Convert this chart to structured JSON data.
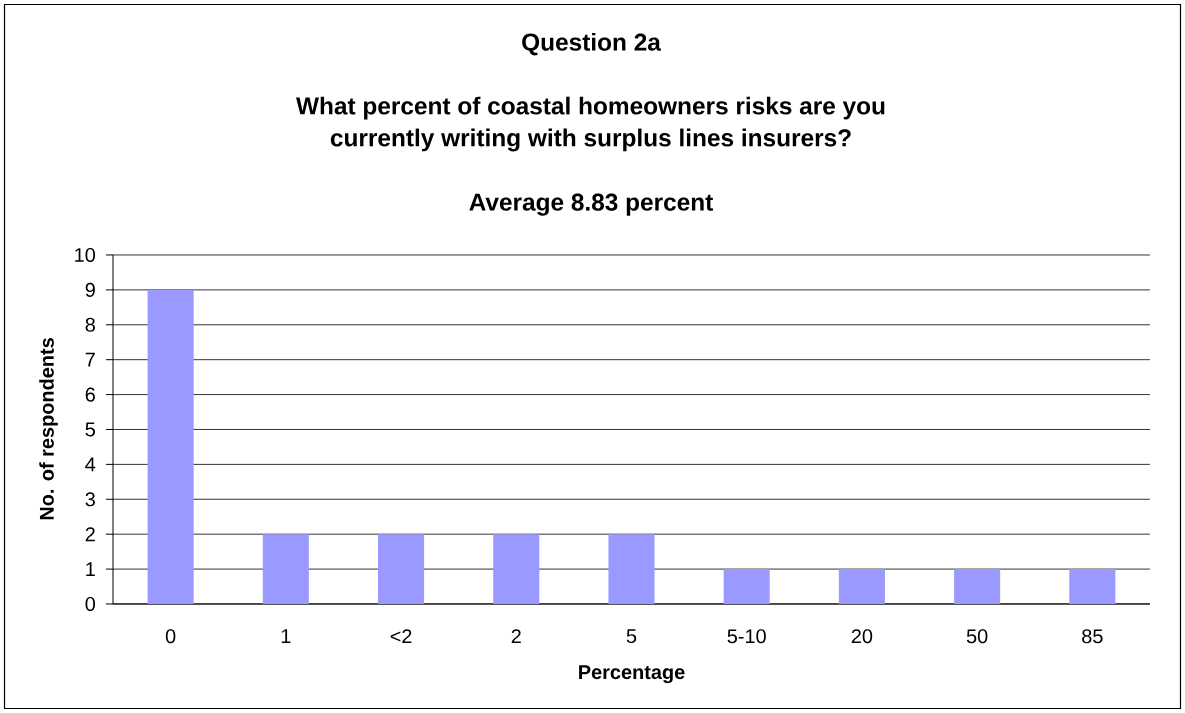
{
  "chart_data": {
    "type": "bar",
    "title": "Question 2a",
    "subtitle": "What percent of coastal homeowners risks are you currently writing with surplus lines insurers?",
    "annotations": [
      "Average 8.83 percent"
    ],
    "xlabel": "Percentage",
    "ylabel": "No. of respondents",
    "categories": [
      "0",
      "1",
      "<2",
      "2",
      "5",
      "5-10",
      "20",
      "50",
      "85"
    ],
    "values": [
      9,
      2,
      2,
      2,
      2,
      1,
      1,
      1,
      1
    ],
    "color": "#9999ff",
    "ylim": [
      0,
      10
    ],
    "yticks": [
      0,
      1,
      2,
      3,
      4,
      5,
      6,
      7,
      8,
      9,
      10
    ],
    "grid": "y"
  }
}
